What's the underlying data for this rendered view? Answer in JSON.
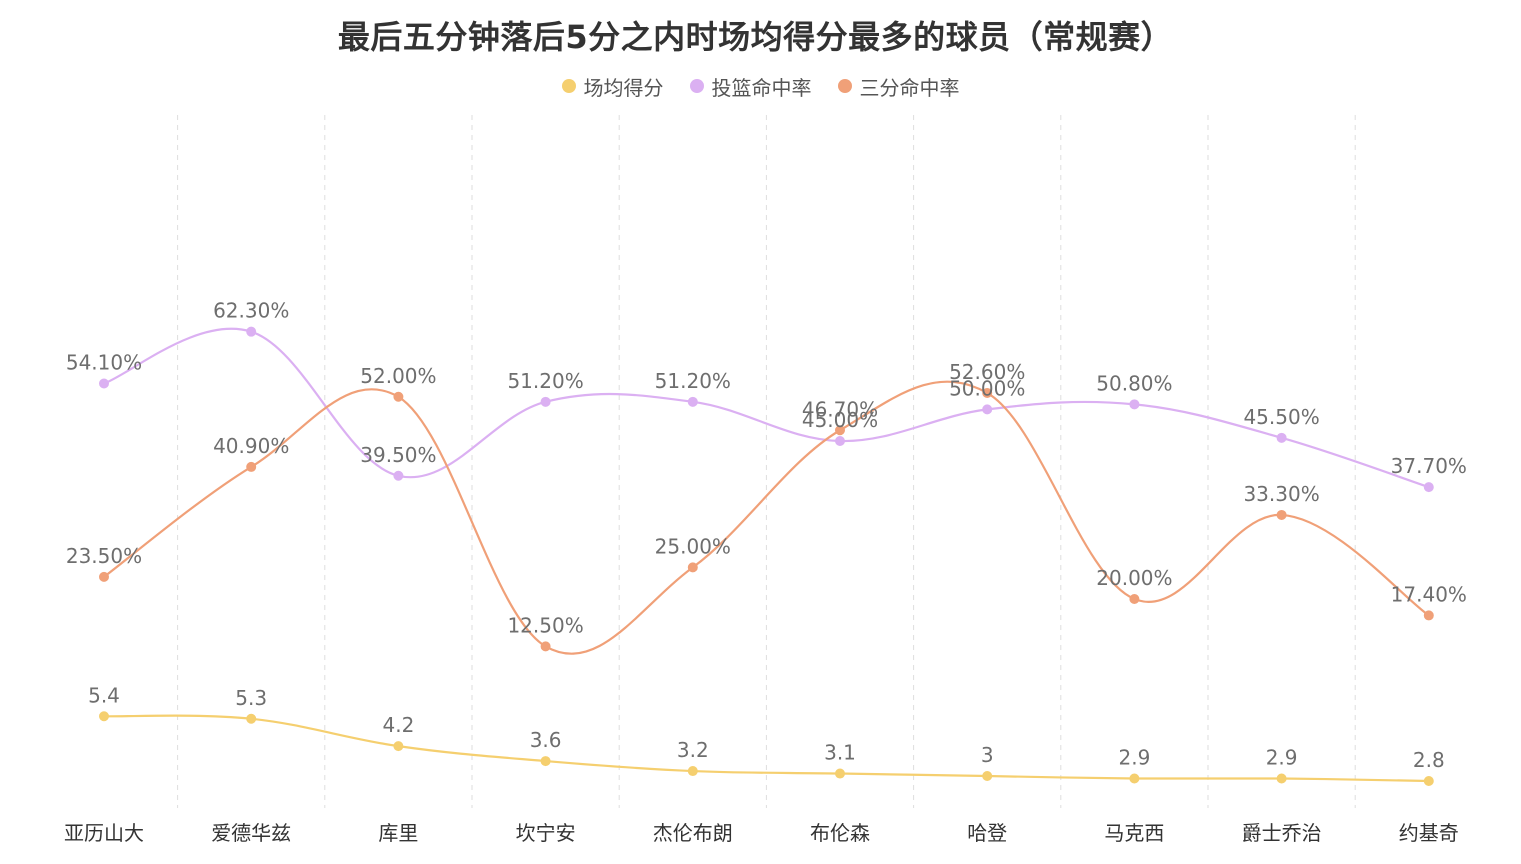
{
  "chart_data": {
    "type": "line",
    "title": "最后五分钟落后5分之内时场均得分最多的球员（常规赛）",
    "categories": [
      "亚历山大",
      "爱德华兹",
      "库里",
      "坎宁安",
      "杰伦布朗",
      "布伦森",
      "哈登",
      "马克西",
      "爵士乔治",
      "约基奇"
    ],
    "series": [
      {
        "name": "场均得分",
        "color": "#f5cf6f",
        "values": [
          5.4,
          5.3,
          4.2,
          3.6,
          3.2,
          3.1,
          3,
          2.9,
          2.9,
          2.8
        ],
        "labels": [
          "5.4",
          "5.3",
          "4.2",
          "3.6",
          "3.2",
          "3.1",
          "3",
          "2.9",
          "2.9",
          "2.8"
        ]
      },
      {
        "name": "投篮命中率",
        "color": "#dbb0f2",
        "values": [
          54.1,
          62.3,
          39.5,
          51.2,
          51.2,
          45.0,
          50.0,
          50.8,
          45.5,
          37.7
        ],
        "labels": [
          "54.10%",
          "62.30%",
          "39.50%",
          "51.20%",
          "51.20%",
          "45.00%",
          "50.00%",
          "50.80%",
          "45.50%",
          "37.70%"
        ]
      },
      {
        "name": "三分命中率",
        "color": "#f0a078",
        "values": [
          23.5,
          40.9,
          52.0,
          12.5,
          25.0,
          46.7,
          52.6,
          20.0,
          33.3,
          17.4
        ],
        "labels": [
          "23.50%",
          "40.90%",
          "52.00%",
          "12.50%",
          "25.00%",
          "46.70%",
          "52.60%",
          "20.00%",
          "33.30%",
          "17.40%"
        ]
      }
    ],
    "legend_position": "top-center",
    "grid": "vertical dashed separators between categories",
    "y_axis_visible": false
  }
}
